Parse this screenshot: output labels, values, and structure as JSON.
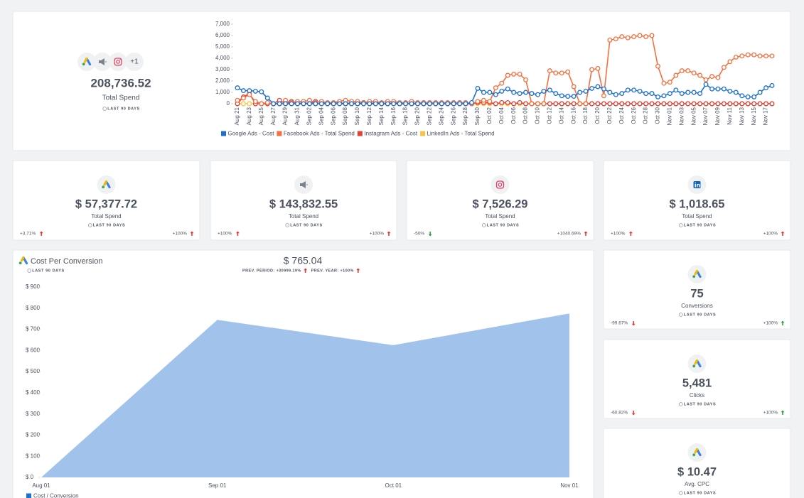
{
  "summary": {
    "more": "+1",
    "value": "208,736.52",
    "label": "Total Spend",
    "period": "LAST 90 DAYS"
  },
  "spend_cards": [
    {
      "value": "$ 57,377.72",
      "label": "Total Spend",
      "period": "LAST 90 DAYS",
      "change_left": "+3.71%",
      "change_right": "+100%"
    },
    {
      "value": "$ 143,832.55",
      "label": "Total Spend",
      "period": "LAST 90 DAYS",
      "change_left": "+100%",
      "change_right": "+100%"
    },
    {
      "value": "$ 7,526.29",
      "label": "Total Spend",
      "period": "LAST 90 DAYS",
      "change_left": "-50%",
      "change_right": "+1040.69%"
    },
    {
      "value": "$ 1,018.65",
      "label": "Total Spend",
      "period": "LAST 90 DAYS",
      "change_left": "+100%",
      "change_right": "+100%"
    }
  ],
  "conversion_summary": {
    "period": "LAST 90 DAYS",
    "value": "$ 765.04",
    "prev_period": "PREV. PERIOD: +30999.19%",
    "prev_year": "PREV. YEAR: +100%"
  },
  "side_cards": [
    {
      "value": "75",
      "label": "Conversions",
      "period": "LAST 90 DAYS",
      "change_left": "-99.67%",
      "change_right": "+100%"
    },
    {
      "value": "5,481",
      "label": "Clicks",
      "period": "LAST 90 DAYS",
      "change_left": "-60.82%",
      "change_right": "+100%"
    },
    {
      "value": "$ 10.47",
      "label": "Avg. CPC",
      "period": "LAST 90 DAYS"
    }
  ],
  "chart_data": [
    {
      "type": "line",
      "categories": [
        "Aug 21",
        null,
        "Aug 23",
        null,
        "Aug 25",
        null,
        "Aug 27",
        null,
        "Aug 29",
        null,
        "Aug 31",
        null,
        "Sep 02",
        null,
        "Sep 04",
        null,
        "Sep 06",
        null,
        "Sep 08",
        null,
        "Sep 10",
        null,
        "Sep 12",
        null,
        "Sep 14",
        null,
        "Sep 16",
        null,
        "Sep 18",
        null,
        "Sep 20",
        null,
        "Sep 22",
        null,
        "Sep 24",
        null,
        "Sep 26",
        null,
        "Sep 28",
        null,
        "Sep 30",
        null,
        "Oct 02",
        null,
        "Oct 04",
        null,
        "Oct 06",
        null,
        "Oct 08",
        null,
        "Oct 10",
        null,
        "Oct 12",
        null,
        "Oct 14",
        null,
        "Oct 16",
        null,
        "Oct 18",
        null,
        "Oct 20",
        null,
        "Oct 22",
        null,
        "Oct 24",
        null,
        "Oct 26",
        null,
        "Oct 28",
        null,
        "Oct 30",
        null,
        "Nov 01",
        null,
        "Nov 03",
        null,
        "Nov 05",
        null,
        "Nov 07",
        null,
        "Nov 09",
        null,
        "Nov 11",
        null,
        "Nov 13",
        null,
        "Nov 15",
        null,
        "Nov 17",
        null
      ],
      "series": [
        {
          "name": "Google Ads - Cost",
          "color": "#1e6fd0",
          "values": [
            1400,
            1150,
            1150,
            1100,
            1050,
            500,
            0,
            0,
            0,
            0,
            0,
            0,
            0,
            0,
            0,
            0,
            0,
            0,
            0,
            0,
            0,
            0,
            0,
            0,
            0,
            0,
            0,
            0,
            0,
            0,
            0,
            0,
            0,
            0,
            0,
            0,
            0,
            0,
            0,
            100,
            1350,
            1000,
            1000,
            800,
            1100,
            1300,
            1000,
            900,
            1000,
            900,
            800,
            1100,
            1200,
            900,
            700,
            650,
            650,
            1000,
            1100,
            1350,
            1500,
            1300,
            1000,
            800,
            900,
            1200,
            1200,
            1100,
            900,
            900,
            600,
            700,
            900,
            1200,
            900,
            1000,
            1000,
            900,
            1700,
            1300,
            1300,
            1300,
            1100,
            1000,
            700,
            600,
            600,
            1000,
            1400,
            1600
          ]
        },
        {
          "name": "Facebook Ads - Total Spend",
          "color": "#f4703f",
          "values": [
            300,
            500,
            800,
            200,
            0,
            100,
            0,
            0,
            300,
            100,
            200,
            200,
            300,
            100,
            200,
            100,
            100,
            200,
            300,
            200,
            200,
            100,
            200,
            200,
            100,
            200,
            200,
            100,
            100,
            200,
            100,
            100,
            100,
            100,
            100,
            100,
            100,
            100,
            100,
            0,
            200,
            300,
            200,
            1400,
            1800,
            2500,
            2600,
            2600,
            2100,
            0,
            0,
            0,
            2900,
            2700,
            2700,
            2800,
            1500,
            0,
            0,
            3000,
            3100,
            700,
            5600,
            5700,
            5900,
            5800,
            5900,
            6000,
            5900,
            6000,
            3300,
            1800,
            1900,
            2500,
            2900,
            2900,
            2700,
            2500,
            2100,
            2400,
            2300,
            3200,
            3700,
            4100,
            4200,
            4300,
            4300,
            4200,
            4200,
            4200
          ]
        },
        {
          "name": "Instagram Ads - Cost",
          "color": "#e2403a",
          "values": [
            0,
            600,
            900,
            0,
            0,
            0,
            0,
            300,
            0,
            200,
            0,
            100,
            0,
            200,
            100,
            0,
            0,
            100,
            0,
            100,
            0,
            100,
            0,
            100,
            0,
            0,
            100,
            0,
            0,
            0,
            0,
            0,
            0,
            0,
            0,
            0,
            0,
            0,
            0,
            0,
            100,
            100,
            100,
            0,
            100,
            100,
            0,
            100,
            0,
            0,
            0,
            0,
            0,
            0,
            0,
            0,
            0,
            0,
            0,
            0,
            0,
            0,
            0,
            0,
            0,
            0,
            0,
            0,
            0,
            0,
            0,
            0,
            0,
            0,
            0,
            0,
            0,
            0,
            0,
            0,
            0,
            0,
            0,
            0,
            0,
            0,
            0,
            0,
            0,
            0
          ]
        },
        {
          "name": "LinkedIn Ads - Total Spend",
          "color": "#f6c548",
          "values": [
            0,
            0,
            0,
            0,
            0,
            0,
            0,
            0,
            0,
            0,
            0,
            0,
            0,
            0,
            0,
            0,
            0,
            0,
            0,
            0,
            0,
            0,
            0,
            0,
            0,
            0,
            0,
            0,
            0,
            0,
            0,
            0,
            0,
            0,
            0,
            0,
            0,
            0,
            0,
            0,
            0,
            0,
            0,
            0,
            0,
            0,
            0,
            0,
            0,
            0,
            0,
            0,
            0,
            0,
            0,
            0,
            0,
            0,
            0,
            0,
            0,
            0,
            0,
            0,
            0,
            0,
            0,
            0,
            0,
            0,
            0,
            0,
            0,
            0,
            0,
            0,
            0,
            0,
            0,
            0,
            0,
            0,
            0,
            0,
            0,
            0,
            0,
            0,
            0,
            0
          ]
        }
      ],
      "ylim": [
        0,
        7000
      ],
      "yticks": [
        0,
        {
          "value": 1000,
          "label": "1,000"
        },
        {
          "value": 2000,
          "label": "2,000"
        },
        {
          "value": 3000,
          "label": "3,000"
        },
        {
          "value": 4000,
          "label": "4,000"
        },
        {
          "value": 5000,
          "label": "5,000"
        },
        {
          "value": 6000,
          "label": "6,000"
        },
        {
          "value": 7000,
          "label": "7,000"
        }
      ],
      "legend": "bottom"
    },
    {
      "type": "area",
      "title": "Cost Per Conversion",
      "categories": [
        "Aug 01",
        "Sep 01",
        "Oct 01",
        "Nov 01"
      ],
      "series": [
        {
          "name": "Cost / Conversion",
          "color": "#1e6fd0",
          "values": [
            0,
            745,
            625,
            775
          ]
        }
      ],
      "ylim": [
        0,
        900
      ],
      "yticks": [
        {
          "value": 0,
          "label": "$ 0"
        },
        {
          "value": 100,
          "label": "$ 100"
        },
        {
          "value": 200,
          "label": "$ 200"
        },
        {
          "value": 300,
          "label": "$ 300"
        },
        {
          "value": 400,
          "label": "$ 400"
        },
        {
          "value": 500,
          "label": "$ 500"
        },
        {
          "value": 600,
          "label": "$ 600"
        },
        {
          "value": 700,
          "label": "$ 700"
        },
        {
          "value": 800,
          "label": "$ 800"
        },
        {
          "value": 900,
          "label": "$ 900"
        }
      ],
      "legend": "bottom"
    }
  ]
}
